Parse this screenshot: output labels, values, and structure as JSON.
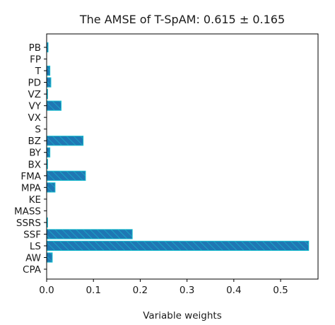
{
  "chart_data": {
    "type": "bar",
    "orientation": "horizontal",
    "title": "The AMSE of T-SpAM: 0.615 ± 0.165",
    "xlabel": "Variable weights",
    "ylabel": "",
    "xlim": [
      0.0,
      0.58
    ],
    "xticks": [
      0.0,
      0.1,
      0.2,
      0.3,
      0.4,
      0.5
    ],
    "xtick_labels": [
      "0.0",
      "0.1",
      "0.2",
      "0.3",
      "0.4",
      "0.5"
    ],
    "categories": [
      "CPA",
      "AW",
      "LS",
      "SSF",
      "SSRS",
      "MASS",
      "KE",
      "MPA",
      "FMA",
      "BX",
      "BY",
      "BZ",
      "S",
      "VX",
      "VY",
      "VZ",
      "PD",
      "T",
      "FP",
      "PB"
    ],
    "values": [
      0.0,
      0.012,
      0.56,
      0.183,
      0.002,
      0.0,
      0.0,
      0.018,
      0.083,
      0.002,
      0.007,
      0.078,
      0.0,
      0.0,
      0.031,
      0.002,
      0.009,
      0.007,
      0.0,
      0.003
    ],
    "bar_fill": "#1f77b4",
    "bar_edge": "#17becf",
    "hatch": "diagonal",
    "grid": false,
    "legend": "none"
  }
}
